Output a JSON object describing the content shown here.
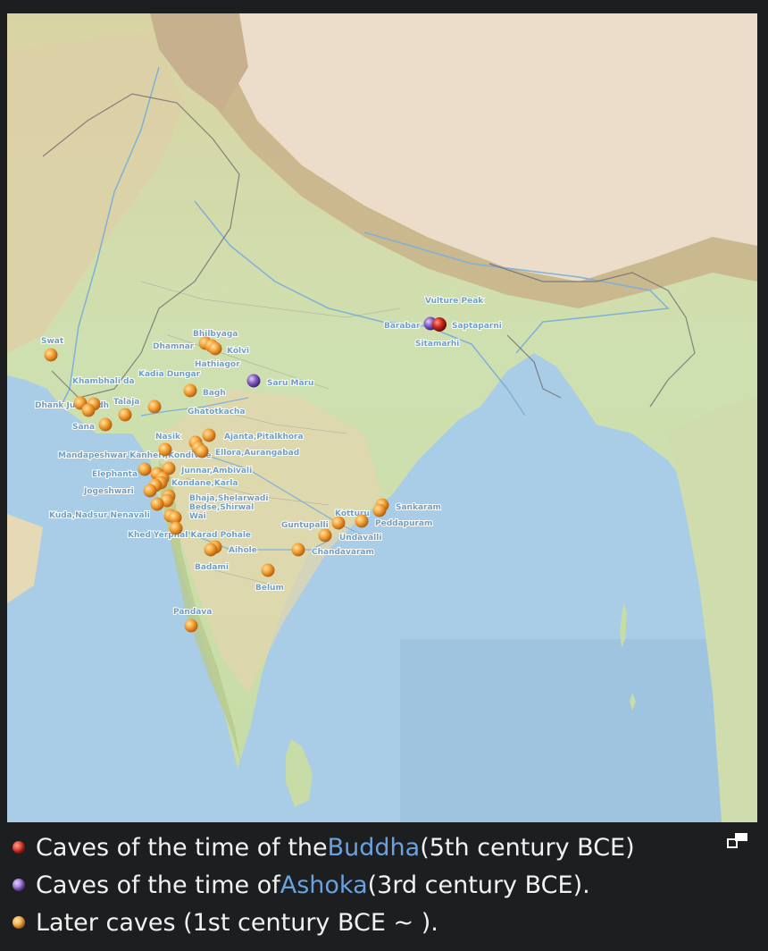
{
  "colors": {
    "sea": "#a9cde6",
    "plains": "#cfe0b0",
    "highlands": "#e3d6ad",
    "mountains": "#c9b28a",
    "tibet": "#ecdcca",
    "buddha_marker": "#d22a1e",
    "ashoka_marker": "#8a5fc8",
    "later_marker": "#f3a23a",
    "label": "#6f9ec2",
    "link": "#6aa2e0"
  },
  "map": {
    "labels": [
      "Swat",
      "Khambhali da",
      "Kadia Dungar",
      "Talaja",
      "Dhank Junagadh",
      "Sana",
      "Mandapeshwar Kanheri,Kondivite",
      "Elephanta",
      "Jogeshwari",
      "Kuda,Nadsur Nenavali",
      "Khed Yerphal Karad Pohale",
      "Dhamnar",
      "Bhilbyaga",
      "Kolvi",
      "Hathiagor",
      "Bagh",
      "Ghatotkacha",
      "Nasik",
      "Ajanta,Pitalkhora",
      "Ellora,Aurangabad",
      "Junnar,Ambivali",
      "Kondane,Karla",
      "Bhaja,Shelarwadi",
      "Bedse,Shirwal",
      "Wai",
      "Aihole",
      "Badami",
      "Pandava",
      "Belum",
      "Saru Maru",
      "Barabar",
      "Vulture Peak",
      "Saptaparni",
      "Sitamarhi",
      "Kotturu",
      "Sankaram",
      "Peddapuram",
      "Guntupalli",
      "Undavalli",
      "Chandavaram"
    ],
    "markers": {
      "buddha": [
        "Saptaparni"
      ],
      "ashoka": [
        "Barabar",
        "Saru Maru"
      ],
      "later_count": 44
    }
  },
  "legend": [
    {
      "icon": "red-dot",
      "before": "Caves of the time of the ",
      "link": "Buddha",
      "after": " (5th century BCE)"
    },
    {
      "icon": "purple-dot",
      "before": "Caves of the time of ",
      "link": "Ashoka",
      "after": " (3rd century BCE)."
    },
    {
      "icon": "orange-dot",
      "before": "Later caves (1st century BCE ~ ).",
      "link": "",
      "after": ""
    }
  ],
  "controls": {
    "expand_icon": "expand-icon"
  }
}
